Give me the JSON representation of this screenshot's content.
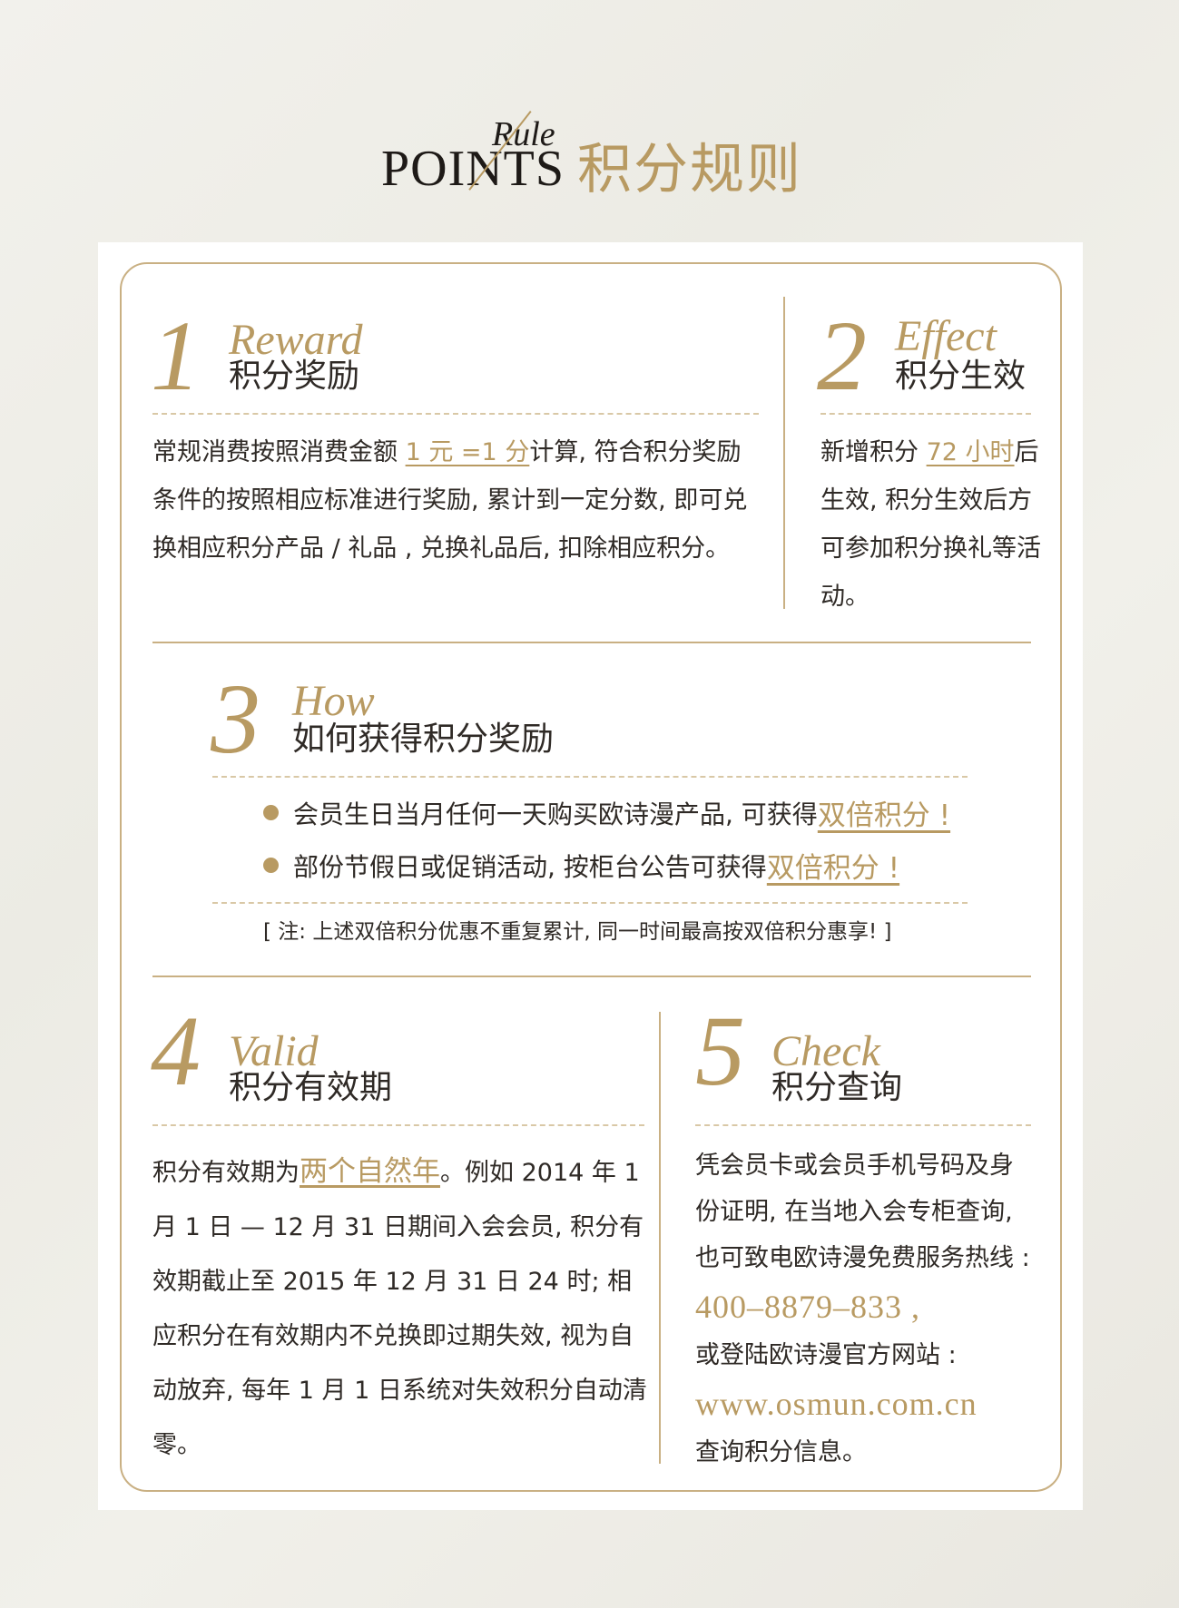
{
  "header": {
    "rule": "Rule",
    "points": "POINTS",
    "title_cn": "积分规则"
  },
  "s1": {
    "num": "1",
    "en": "Reward",
    "cn": "积分奖励",
    "p1": "常规消费按照消费金额 ",
    "hl": "1 元 =1 分",
    "p2": "计算, 符合积分奖励条件的按照相应标准进行奖励, 累计到一定分数, 即可兑换相应积分产品 / 礼品 , 兑换礼品后, 扣除相应积分。"
  },
  "s2": {
    "num": "2",
    "en": "Effect",
    "cn": "积分生效",
    "p1": "新增积分 ",
    "hl": "72 小时",
    "p2": "后生效, 积分生效后方可参加积分换礼等活动。"
  },
  "s3": {
    "num": "3",
    "en": "How",
    "cn": "如何获得积分奖励",
    "b1_text": "会员生日当月任何一天购买欧诗漫产品, 可获得",
    "b1_hl": "双倍积分 !",
    "b2_text": "部份节假日或促销活动, 按柜台公告可获得",
    "b2_hl": "双倍积分 !",
    "note": "[ 注:  上述双倍积分优惠不重复累计, 同一时间最高按双倍积分惠享!  ]"
  },
  "s4": {
    "num": "4",
    "en": "Valid",
    "cn": "积分有效期",
    "p1": "积分有效期为",
    "hl": "两个自然年",
    "p2": "。例如 2014 年 1 月 1 日 — 12 月 31 日期间入会会员, 积分有效期截止至 2015 年 12 月 31 日 24 时; 相应积分在有效期内不兑换即过期失效, 视为自动放弃, 每年 1 月 1 日系统对失效积分自动清零。"
  },
  "s5": {
    "num": "5",
    "en": "Check",
    "cn": "积分查询",
    "p1": "凭会员卡或会员手机号码及身份证明, 在当地入会专柜查询, 也可致电欧诗漫免费服务热线 :",
    "phone": "400–8879–833 ,",
    "p2": "或登陆欧诗漫官方网站 :",
    "site": "www.osmun.com.cn",
    "p3": "查询积分信息。"
  }
}
